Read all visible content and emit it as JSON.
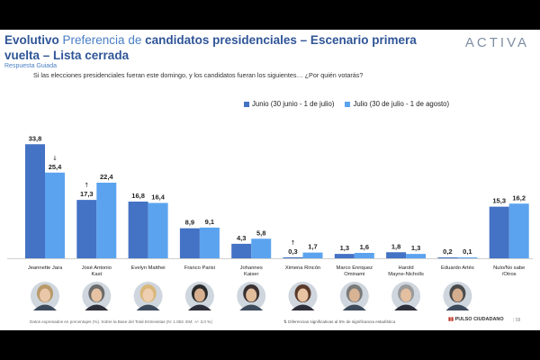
{
  "title": {
    "prefix": "Evolutivo",
    "mid": "Preferencia de",
    "rest": "candidatos presidenciales – Escenario primera vuelta – Lista cerrada"
  },
  "logo": "ACTIVA",
  "subtitle_tag": "Respuesta Guiada",
  "question": "Si las elecciones presidenciales fueran este domingo, y los candidatos fueran los siguientes… ¿Por quién votarás?",
  "footnote": "Datos expresados en porcentajes (%). Sobre la Base del Total Entrevistas (N: 1.053. EM: +/- 3,0 %)",
  "sig_note": "Diferencias significativas al 5% de significancia estadística",
  "brand": "PULSO CIUDADANO",
  "page_number": "58",
  "colors": {
    "series1": "#4472c4",
    "series2": "#5ba3ef",
    "title": "#2f5597"
  },
  "chart_data": {
    "type": "bar",
    "categories": [
      "Jeannette Jara",
      "José Antonio Kast",
      "Evelyn Matthei",
      "Franco Parisi",
      "Johannes Kaiser",
      "Ximena Rincón",
      "Marco Enriquez Ominami",
      "Harold Mayne-Nicholls",
      "Eduardo Artés",
      "Nulo/No sabe /Otros"
    ],
    "series": [
      {
        "name": "Junio (30 junio - 1 de julio)",
        "values": [
          33.8,
          17.3,
          16.8,
          8.9,
          4.3,
          0.3,
          1.3,
          1.8,
          0.2,
          15.3
        ],
        "labels": [
          "33,8",
          "17,3",
          "16,8",
          "8,9",
          "4,3",
          "0,3",
          "1,3",
          "1,8",
          "0,2",
          "15,3"
        ]
      },
      {
        "name": "Julio (30 de julio - 1 de agosto)",
        "values": [
          25.4,
          22.4,
          16.4,
          9.1,
          5.8,
          1.7,
          1.6,
          1.3,
          0.1,
          16.2
        ],
        "labels": [
          "25,4",
          "22,4",
          "16,4",
          "9,1",
          "5,8",
          "1,7",
          "1,6",
          "1,3",
          "0,1",
          "16,2"
        ]
      }
    ],
    "significance": [
      {
        "category": "Jeannette Jara",
        "direction": "down"
      },
      {
        "category": "José Antonio Kast",
        "direction": "up"
      },
      {
        "category": "Ximena Rincón",
        "direction": "up"
      }
    ],
    "candidate_photos": [
      "Jeannette Jara",
      "José Antonio Kast",
      "Evelyn Matthei",
      "Franco Parisi",
      "Johannes Kaiser",
      "Ximena Rincón",
      "Marco Enriquez Ominami",
      "Harold Mayne-Nicholls",
      "Eduardo Artés"
    ],
    "legend": "top-right",
    "grid": false
  }
}
